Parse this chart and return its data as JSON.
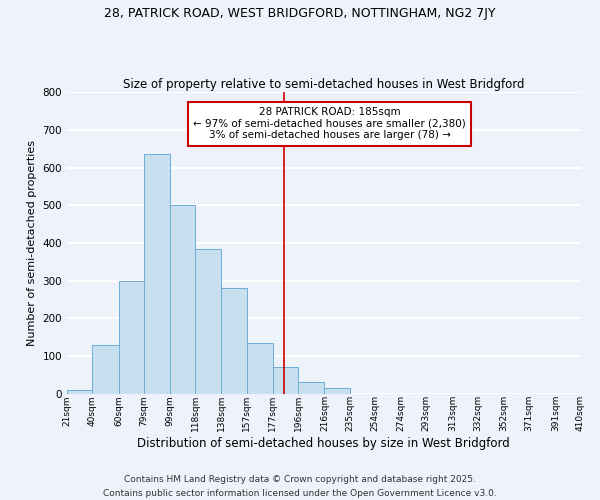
{
  "title": "28, PATRICK ROAD, WEST BRIDGFORD, NOTTINGHAM, NG2 7JY",
  "subtitle": "Size of property relative to semi-detached houses in West Bridgford",
  "xlabel": "Distribution of semi-detached houses by size in West Bridgford",
  "ylabel": "Number of semi-detached properties",
  "bar_left_edges": [
    21,
    40,
    60,
    79,
    99,
    118,
    138,
    157,
    177,
    196,
    216,
    235,
    254,
    274,
    293,
    313,
    332,
    352,
    371,
    391
  ],
  "bar_widths": [
    19,
    20,
    19,
    20,
    19,
    20,
    19,
    20,
    19,
    20,
    19,
    19,
    20,
    19,
    20,
    19,
    20,
    19,
    20,
    19
  ],
  "bar_heights": [
    10,
    130,
    300,
    635,
    500,
    385,
    280,
    135,
    70,
    30,
    15,
    0,
    0,
    0,
    0,
    0,
    0,
    0,
    0,
    0
  ],
  "bar_color": "#c8dff0",
  "bar_edge_color": "#6aaed6",
  "vline_x": 185,
  "vline_color": "#cc0000",
  "annotation_text": "28 PATRICK ROAD: 185sqm\n← 97% of semi-detached houses are smaller (2,380)\n3% of semi-detached houses are larger (78) →",
  "annotation_box_color": "white",
  "annotation_box_edge_color": "#cc0000",
  "ylim": [
    0,
    800
  ],
  "yticks": [
    0,
    100,
    200,
    300,
    400,
    500,
    600,
    700,
    800
  ],
  "xtick_labels": [
    "21sqm",
    "40sqm",
    "60sqm",
    "79sqm",
    "99sqm",
    "118sqm",
    "138sqm",
    "157sqm",
    "177sqm",
    "196sqm",
    "216sqm",
    "235sqm",
    "254sqm",
    "274sqm",
    "293sqm",
    "313sqm",
    "332sqm",
    "352sqm",
    "371sqm",
    "391sqm",
    "410sqm"
  ],
  "xtick_positions": [
    21,
    40,
    60,
    79,
    99,
    118,
    138,
    157,
    177,
    196,
    216,
    235,
    254,
    274,
    293,
    313,
    332,
    352,
    371,
    391,
    410
  ],
  "background_color": "#eef2fb",
  "grid_color": "white",
  "footer_text": "Contains HM Land Registry data © Crown copyright and database right 2025.\nContains public sector information licensed under the Open Government Licence v3.0.",
  "title_fontsize": 9,
  "subtitle_fontsize": 8.5,
  "xlabel_fontsize": 8.5,
  "ylabel_fontsize": 8,
  "annotation_fontsize": 7.5,
  "footer_fontsize": 6.5
}
